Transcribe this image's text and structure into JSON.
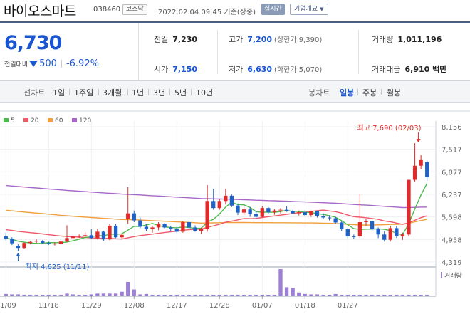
{
  "header": {
    "stock_name": "바이오스마트",
    "stock_code": "038460",
    "market": "코스닥",
    "timestamp": "2022.02.04 09:45 기준(장중)",
    "realtime_label": "실시간",
    "company_info_label": "기업개요"
  },
  "quote": {
    "price": "6,730",
    "change_label": "전일대비",
    "change_amount": "500",
    "change_rate": "-6.92%",
    "prev_close_label": "전일",
    "prev_close": "7,230",
    "open_label": "시가",
    "open": "7,150",
    "high_label": "고가",
    "high": "7,200",
    "upper_limit": "(상한가 9,390)",
    "low_label": "저가",
    "low": "6,630",
    "lower_limit": "(하한가 5,070)",
    "volume_label": "거래량",
    "volume": "1,011,196",
    "amount_label": "거래대금",
    "amount": "6,910 백만"
  },
  "periods": {
    "line_label": "선차트",
    "line_options": [
      "1일",
      "1주일",
      "3개월",
      "1년",
      "3년",
      "5년",
      "10년"
    ],
    "candle_label": "봉차트",
    "candle_options": [
      "일봉",
      "주봉",
      "월봉"
    ],
    "active_candle": "일봉"
  },
  "colors": {
    "up": "#e22a2a",
    "down": "#1e62c8",
    "ma5": "#4cba4c",
    "ma20": "#ef5a6a",
    "ma60": "#f0a03c",
    "ma120": "#a766c8",
    "volume": "#9e7fd6"
  },
  "chart_data": {
    "type": "candlestick",
    "legend": [
      "5",
      "20",
      "60",
      "120"
    ],
    "y_ticks": [
      "8,156",
      "7,517",
      "6,877",
      "6,237",
      "5,598",
      "4,958",
      "4,319"
    ],
    "ylim": [
      4319,
      8156
    ],
    "x_labels": [
      "11/09",
      "11/18",
      "11/29",
      "12/08",
      "12/17",
      "12/28",
      "01/07",
      "01/18",
      "01/27"
    ],
    "x_label_index": [
      0,
      7,
      14,
      21,
      28,
      35,
      42,
      49,
      56
    ],
    "high_annotation": "최고 7,690 (02/03)",
    "low_annotation": "최저 4,625 (11/11)",
    "volume_label": "거래량",
    "candles": [
      {
        "o": 5050,
        "h": 5150,
        "l": 4930,
        "c": 4980
      },
      {
        "o": 4980,
        "h": 5020,
        "l": 4800,
        "c": 4850
      },
      {
        "o": 4780,
        "h": 4820,
        "l": 4625,
        "c": 4720
      },
      {
        "o": 4720,
        "h": 4880,
        "l": 4700,
        "c": 4860
      },
      {
        "o": 4860,
        "h": 4920,
        "l": 4820,
        "c": 4890
      },
      {
        "o": 4900,
        "h": 4960,
        "l": 4860,
        "c": 4920
      },
      {
        "o": 4910,
        "h": 4940,
        "l": 4840,
        "c": 4860
      },
      {
        "o": 4860,
        "h": 4900,
        "l": 4800,
        "c": 4830
      },
      {
        "o": 4830,
        "h": 4880,
        "l": 4790,
        "c": 4840
      },
      {
        "o": 4840,
        "h": 4920,
        "l": 4820,
        "c": 4900
      },
      {
        "o": 4900,
        "h": 5360,
        "l": 4880,
        "c": 5000
      },
      {
        "o": 5000,
        "h": 5080,
        "l": 4960,
        "c": 5040
      },
      {
        "o": 5040,
        "h": 5100,
        "l": 5000,
        "c": 5060
      },
      {
        "o": 5060,
        "h": 5160,
        "l": 5030,
        "c": 5080
      },
      {
        "o": 5080,
        "h": 5250,
        "l": 4980,
        "c": 5000
      },
      {
        "o": 5000,
        "h": 5260,
        "l": 4960,
        "c": 5180
      },
      {
        "o": 5180,
        "h": 5210,
        "l": 4920,
        "c": 4960
      },
      {
        "o": 4960,
        "h": 5400,
        "l": 4940,
        "c": 5350
      },
      {
        "o": 5350,
        "h": 5400,
        "l": 5000,
        "c": 5020
      },
      {
        "o": 5020,
        "h": 5120,
        "l": 4990,
        "c": 5090
      },
      {
        "o": 5550,
        "h": 6440,
        "l": 5400,
        "c": 5700
      },
      {
        "o": 5700,
        "h": 5780,
        "l": 5450,
        "c": 5500
      },
      {
        "o": 5500,
        "h": 5580,
        "l": 5280,
        "c": 5320
      },
      {
        "o": 5320,
        "h": 5400,
        "l": 5200,
        "c": 5250
      },
      {
        "o": 5250,
        "h": 5350,
        "l": 5150,
        "c": 5300
      },
      {
        "o": 5300,
        "h": 5450,
        "l": 5220,
        "c": 5400
      },
      {
        "o": 5400,
        "h": 5420,
        "l": 5280,
        "c": 5300
      },
      {
        "o": 5300,
        "h": 5350,
        "l": 5180,
        "c": 5250
      },
      {
        "o": 5250,
        "h": 5320,
        "l": 5150,
        "c": 5180
      },
      {
        "o": 5180,
        "h": 5480,
        "l": 5150,
        "c": 5450
      },
      {
        "o": 5450,
        "h": 5500,
        "l": 5250,
        "c": 5300
      },
      {
        "o": 5300,
        "h": 5360,
        "l": 5180,
        "c": 5200
      },
      {
        "o": 5200,
        "h": 5300,
        "l": 5120,
        "c": 5250
      },
      {
        "o": 5250,
        "h": 6500,
        "l": 5180,
        "c": 6050
      },
      {
        "o": 6050,
        "h": 6400,
        "l": 5800,
        "c": 5850
      },
      {
        "o": 5850,
        "h": 6100,
        "l": 5800,
        "c": 6050
      },
      {
        "o": 6050,
        "h": 6400,
        "l": 5950,
        "c": 6200
      },
      {
        "o": 6200,
        "h": 6230,
        "l": 5880,
        "c": 5920
      },
      {
        "o": 5920,
        "h": 5980,
        "l": 5650,
        "c": 5720
      },
      {
        "o": 5720,
        "h": 5890,
        "l": 5650,
        "c": 5810
      },
      {
        "o": 5810,
        "h": 5880,
        "l": 5600,
        "c": 5680
      },
      {
        "o": 5680,
        "h": 5750,
        "l": 5550,
        "c": 5600
      },
      {
        "o": 5600,
        "h": 5900,
        "l": 5580,
        "c": 5850
      },
      {
        "o": 5850,
        "h": 5880,
        "l": 5680,
        "c": 5730
      },
      {
        "o": 5730,
        "h": 5820,
        "l": 5660,
        "c": 5780
      },
      {
        "o": 5780,
        "h": 5850,
        "l": 5700,
        "c": 5800
      },
      {
        "o": 5800,
        "h": 5900,
        "l": 5740,
        "c": 5760
      },
      {
        "o": 5760,
        "h": 5800,
        "l": 5680,
        "c": 5700
      },
      {
        "o": 5700,
        "h": 5780,
        "l": 5640,
        "c": 5730
      },
      {
        "o": 5730,
        "h": 5780,
        "l": 5620,
        "c": 5650
      },
      {
        "o": 5650,
        "h": 5780,
        "l": 5600,
        "c": 5760
      },
      {
        "o": 5760,
        "h": 5780,
        "l": 5580,
        "c": 5620
      },
      {
        "o": 5620,
        "h": 5700,
        "l": 5540,
        "c": 5580
      },
      {
        "o": 5580,
        "h": 5640,
        "l": 5500,
        "c": 5560
      },
      {
        "o": 5560,
        "h": 5600,
        "l": 5400,
        "c": 5440
      },
      {
        "o": 5440,
        "h": 5480,
        "l": 5200,
        "c": 5250
      },
      {
        "o": 5250,
        "h": 5280,
        "l": 5000,
        "c": 5050
      },
      {
        "o": 5050,
        "h": 5100,
        "l": 4980,
        "c": 5030
      },
      {
        "o": 5050,
        "h": 6250,
        "l": 5000,
        "c": 5450
      },
      {
        "o": 5450,
        "h": 5550,
        "l": 5350,
        "c": 5480
      },
      {
        "o": 5480,
        "h": 5500,
        "l": 5200,
        "c": 5250
      },
      {
        "o": 5250,
        "h": 5300,
        "l": 5000,
        "c": 5100
      },
      {
        "o": 5100,
        "h": 5200,
        "l": 4900,
        "c": 4950
      },
      {
        "o": 4950,
        "h": 5350,
        "l": 4900,
        "c": 5280
      },
      {
        "o": 5280,
        "h": 5350,
        "l": 5000,
        "c": 5050
      },
      {
        "o": 5050,
        "h": 5150,
        "l": 4950,
        "c": 5100
      },
      {
        "o": 5100,
        "h": 6650,
        "l": 5050,
        "c": 6650
      },
      {
        "o": 6650,
        "h": 7690,
        "l": 6600,
        "c": 7050
      },
      {
        "o": 7050,
        "h": 7350,
        "l": 6950,
        "c": 7230
      },
      {
        "o": 7150,
        "h": 7200,
        "l": 6630,
        "c": 6730
      }
    ],
    "volumes": [
      0.04,
      0.03,
      0.03,
      0.02,
      0.02,
      0.02,
      0.02,
      0.02,
      0.02,
      0.02,
      0.05,
      0.03,
      0.02,
      0.02,
      0.03,
      0.05,
      0.05,
      0.05,
      0.05,
      0.1,
      0.36,
      0.16,
      0.03,
      0.04,
      0.02,
      0.02,
      0.02,
      0.02,
      0.02,
      0.02,
      0.02,
      0.02,
      0.02,
      0.02,
      0.02,
      0.02,
      0.02,
      0.02,
      0.02,
      0.02,
      0.02,
      0.02,
      0.02,
      0.02,
      0.02,
      0.7,
      0.22,
      0.2,
      0.08,
      0.04,
      0.03,
      0.03,
      0.02,
      0.02,
      0.04,
      0.02,
      0.02,
      0.02,
      0.02,
      0.02,
      0.02,
      0.02,
      0.02,
      0.02,
      0.02,
      0.02,
      0.02,
      0.02,
      0.02,
      0.02
    ]
  }
}
